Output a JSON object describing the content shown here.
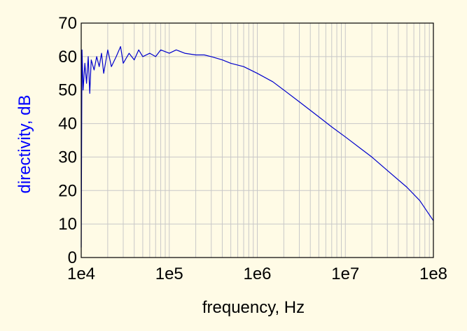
{
  "chart_data": {
    "type": "line",
    "xlabel": "frequency, Hz",
    "ylabel": "directivity, dB",
    "x_scale": "log",
    "xlim": [
      10000,
      100000000
    ],
    "ylim": [
      0,
      70
    ],
    "x_ticks": [
      "1e4",
      "1e5",
      "1e6",
      "1e7",
      "1e8"
    ],
    "y_ticks": [
      "0",
      "10",
      "20",
      "30",
      "40",
      "50",
      "60",
      "70"
    ],
    "grid": true,
    "colors": {
      "line": "#0000cc",
      "ylabel": "#0000ff",
      "grid": "#c8c8c8",
      "background": "#fffbe6"
    },
    "series": [
      {
        "x": [
          10000,
          10200,
          10500,
          11000,
          11500,
          12000,
          12500,
          13000,
          14000,
          15000,
          16000,
          17000,
          18000,
          20000,
          22000,
          25000,
          28000,
          30000,
          35000,
          40000,
          45000,
          50000,
          60000,
          70000,
          80000,
          100000,
          120000,
          150000,
          200000,
          250000,
          300000,
          400000,
          500000,
          700000,
          1000000,
          1500000,
          2000000,
          3000000,
          5000000,
          7000000,
          10000000,
          15000000,
          20000000,
          30000000,
          50000000,
          70000000,
          100000000
        ],
        "y": [
          3,
          62,
          50,
          58,
          52,
          60,
          49,
          59,
          56,
          60,
          57,
          61,
          55,
          62,
          57,
          60,
          63,
          58,
          61,
          59,
          62,
          60,
          61,
          60,
          62,
          61,
          62,
          61,
          60.5,
          60.5,
          60,
          59,
          58,
          57,
          55,
          52.5,
          50,
          46.5,
          42,
          39,
          36,
          32.5,
          30,
          26,
          21,
          17,
          11
        ]
      }
    ]
  }
}
